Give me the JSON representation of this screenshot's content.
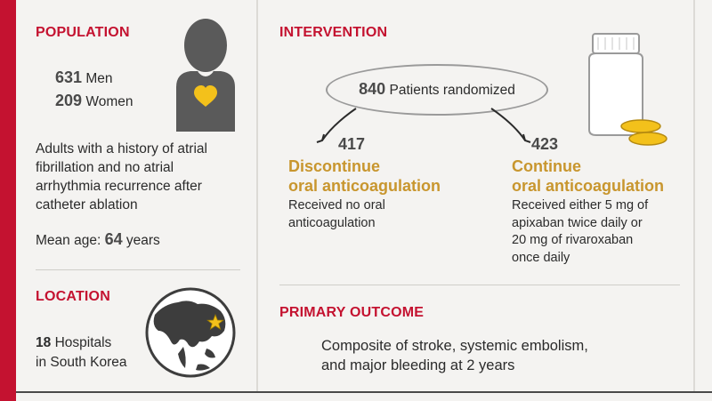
{
  "population": {
    "heading": "POPULATION",
    "men_count": "631",
    "men_label": "Men",
    "women_count": "209",
    "women_label": "Women",
    "description_lines": [
      "Adults with a history of atrial",
      "fibrillation and no atrial",
      "arrhythmia recurrence after",
      "catheter ablation"
    ],
    "mean_age_label": "Mean age:",
    "mean_age_value": "64",
    "mean_age_unit": "years"
  },
  "location": {
    "heading": "LOCATION",
    "hospital_count": "18",
    "hospital_label": "Hospitals",
    "place": "in South Korea"
  },
  "intervention": {
    "heading": "INTERVENTION",
    "randomized_count": "840",
    "randomized_label": "Patients randomized",
    "discontinue": {
      "count": "417",
      "title_line1": "Discontinue",
      "title_line2": "oral anticoagulation",
      "desc_lines": [
        "Received no oral",
        "anticoagulation"
      ]
    },
    "continue": {
      "count": "423",
      "title_line1": "Continue",
      "title_line2": "oral anticoagulation",
      "desc_lines": [
        "Received either 5 mg of",
        "apixaban twice daily or",
        "20 mg of rivaroxaban",
        "once daily"
      ]
    }
  },
  "outcome": {
    "heading": "PRIMARY OUTCOME",
    "lines": [
      "Composite of stroke, systemic embolism,",
      "and major bleeding at 2 years"
    ]
  },
  "colors": {
    "accent_red": "#c41230",
    "gold": "#c8962e",
    "icon_gray": "#5a5a5a",
    "heart_yellow": "#f3c11b"
  }
}
